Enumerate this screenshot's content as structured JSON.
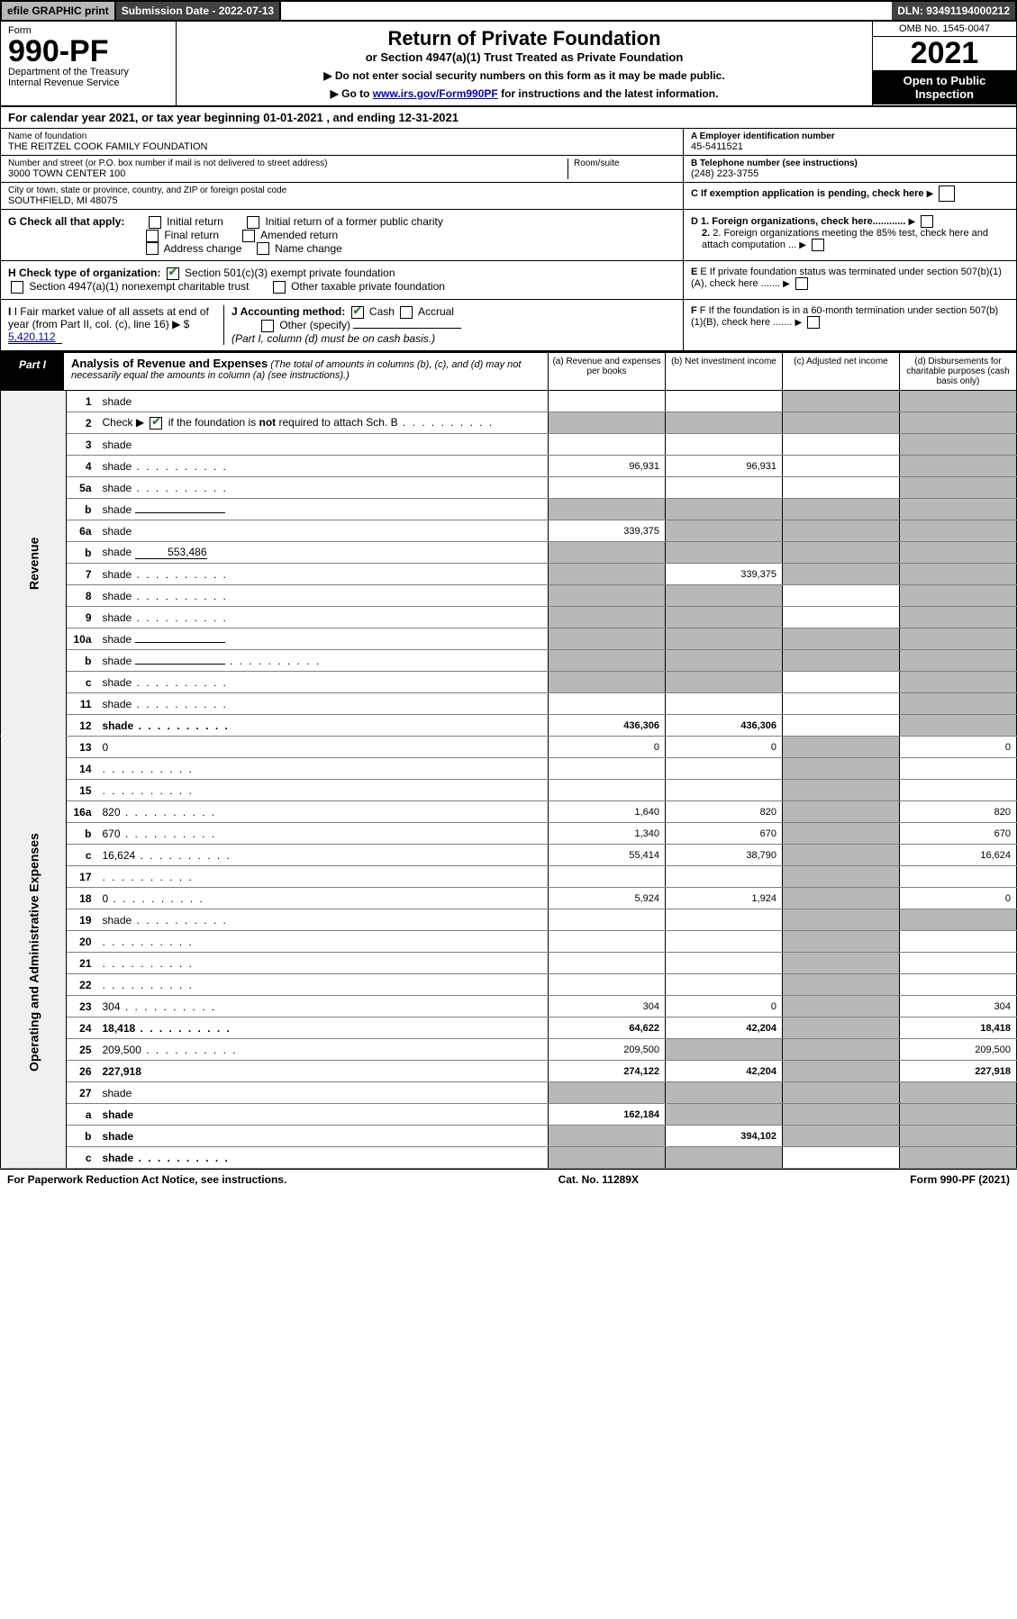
{
  "topbar": {
    "efile": "efile GRAPHIC print",
    "submission": "Submission Date - 2022-07-13",
    "dln": "DLN: 93491194000212"
  },
  "header": {
    "form_label": "Form",
    "form_number": "990-PF",
    "dept": "Department of the Treasury",
    "irs": "Internal Revenue Service",
    "title": "Return of Private Foundation",
    "subtitle": "or Section 4947(a)(1) Trust Treated as Private Foundation",
    "note1": "▶ Do not enter social security numbers on this form as it may be made public.",
    "note2_pre": "▶ Go to ",
    "note2_link": "www.irs.gov/Form990PF",
    "note2_post": " for instructions and the latest information.",
    "omb": "OMB No. 1545-0047",
    "year": "2021",
    "open": "Open to Public Inspection"
  },
  "cal_year": "For calendar year 2021, or tax year beginning 01-01-2021             , and ending 12-31-2021",
  "foundation": {
    "name_lbl": "Name of foundation",
    "name": "THE REITZEL COOK FAMILY FOUNDATION",
    "addr_lbl": "Number and street (or P.O. box number if mail is not delivered to street address)",
    "addr": "3000 TOWN CENTER 100",
    "room_lbl": "Room/suite",
    "city_lbl": "City or town, state or province, country, and ZIP or foreign postal code",
    "city": "SOUTHFIELD, MI  48075",
    "ein_lbl": "A Employer identification number",
    "ein": "45-5411521",
    "phone_lbl": "B Telephone number (see instructions)",
    "phone": "(248) 223-3755",
    "c_lbl": "C If exemption application is pending, check here",
    "d1": "D 1. Foreign organizations, check here............",
    "d2": "2. Foreign organizations meeting the 85% test, check here and attach computation ...",
    "e_lbl": "E  If private foundation status was terminated under section 507(b)(1)(A), check here .......",
    "f_lbl": "F  If the foundation is in a 60-month termination under section 507(b)(1)(B), check here ......."
  },
  "g": {
    "label": "G Check all that apply:",
    "o1": "Initial return",
    "o2": "Final return",
    "o3": "Address change",
    "o4": "Initial return of a former public charity",
    "o5": "Amended return",
    "o6": "Name change"
  },
  "h": {
    "label": "H Check type of organization:",
    "o1": "Section 501(c)(3) exempt private foundation",
    "o2": "Section 4947(a)(1) nonexempt charitable trust",
    "o3": "Other taxable private foundation"
  },
  "i": {
    "label": "I Fair market value of all assets at end of year (from Part II, col. (c), line 16)",
    "val_pre": "▶ $",
    "val": "5,420,112"
  },
  "j": {
    "label": "J Accounting method:",
    "o1": "Cash",
    "o2": "Accrual",
    "o3": "Other (specify)",
    "note": "(Part I, column (d) must be on cash basis.)"
  },
  "part1": {
    "label": "Part I",
    "title": "Analysis of Revenue and Expenses",
    "title_note": "(The total of amounts in columns (b), (c), and (d) may not necessarily equal the amounts in column (a) (see instructions).)",
    "col_a": "(a)  Revenue and expenses per books",
    "col_b": "(b)  Net investment income",
    "col_c": "(c)  Adjusted net income",
    "col_d": "(d)  Disbursements for charitable purposes (cash basis only)"
  },
  "sides": {
    "revenue": "Revenue",
    "expenses": "Operating and Administrative Expenses"
  },
  "rows": [
    {
      "n": "1",
      "d": "shade",
      "a": "",
      "b": "",
      "c": "shade"
    },
    {
      "n": "2",
      "d": "shade",
      "a": "shade",
      "b": "shade",
      "c": "shade",
      "dots": true
    },
    {
      "n": "3",
      "d": "shade",
      "a": "",
      "b": "",
      "c": ""
    },
    {
      "n": "4",
      "d": "shade",
      "a": "96,931",
      "b": "96,931",
      "c": "",
      "dots": true
    },
    {
      "n": "5a",
      "d": "shade",
      "a": "",
      "b": "",
      "c": "",
      "dots": true
    },
    {
      "n": "b",
      "d": "shade",
      "a": "shade",
      "b": "shade",
      "c": "shade",
      "inline": true
    },
    {
      "n": "6a",
      "d": "shade",
      "a": "339,375",
      "b": "shade",
      "c": "shade"
    },
    {
      "n": "b",
      "d": "shade",
      "a": "shade",
      "b": "shade",
      "c": "shade",
      "inline_val": "553,486"
    },
    {
      "n": "7",
      "d": "shade",
      "a": "shade",
      "b": "339,375",
      "c": "shade",
      "dots": true
    },
    {
      "n": "8",
      "d": "shade",
      "a": "shade",
      "b": "shade",
      "c": "",
      "dots": true
    },
    {
      "n": "9",
      "d": "shade",
      "a": "shade",
      "b": "shade",
      "c": "",
      "dots": true
    },
    {
      "n": "10a",
      "d": "shade",
      "a": "shade",
      "b": "shade",
      "c": "shade",
      "inline": true
    },
    {
      "n": "b",
      "d": "shade",
      "a": "shade",
      "b": "shade",
      "c": "shade",
      "inline": true,
      "dots": true
    },
    {
      "n": "c",
      "d": "shade",
      "a": "shade",
      "b": "shade",
      "c": "",
      "dots": true
    },
    {
      "n": "11",
      "d": "shade",
      "a": "",
      "b": "",
      "c": "",
      "dots": true
    },
    {
      "n": "12",
      "d": "shade",
      "a": "436,306",
      "b": "436,306",
      "c": "",
      "bold": true,
      "dots": true
    },
    {
      "n": "13",
      "d": "0",
      "a": "0",
      "b": "0",
      "c": "shade"
    },
    {
      "n": "14",
      "d": "",
      "a": "",
      "b": "",
      "c": "shade",
      "dots": true
    },
    {
      "n": "15",
      "d": "",
      "a": "",
      "b": "",
      "c": "shade",
      "dots": true
    },
    {
      "n": "16a",
      "d": "820",
      "a": "1,640",
      "b": "820",
      "c": "shade",
      "dots": true
    },
    {
      "n": "b",
      "d": "670",
      "a": "1,340",
      "b": "670",
      "c": "shade",
      "dots": true
    },
    {
      "n": "c",
      "d": "16,624",
      "a": "55,414",
      "b": "38,790",
      "c": "shade",
      "dots": true
    },
    {
      "n": "17",
      "d": "",
      "a": "",
      "b": "",
      "c": "shade",
      "dots": true
    },
    {
      "n": "18",
      "d": "0",
      "a": "5,924",
      "b": "1,924",
      "c": "shade",
      "dots": true
    },
    {
      "n": "19",
      "d": "shade",
      "a": "",
      "b": "",
      "c": "shade",
      "dots": true
    },
    {
      "n": "20",
      "d": "",
      "a": "",
      "b": "",
      "c": "shade",
      "dots": true
    },
    {
      "n": "21",
      "d": "",
      "a": "",
      "b": "",
      "c": "shade",
      "dots": true
    },
    {
      "n": "22",
      "d": "",
      "a": "",
      "b": "",
      "c": "shade",
      "dots": true
    },
    {
      "n": "23",
      "d": "304",
      "a": "304",
      "b": "0",
      "c": "shade",
      "dots": true
    },
    {
      "n": "24",
      "d": "18,418",
      "a": "64,622",
      "b": "42,204",
      "c": "shade",
      "bold": true,
      "dots": true
    },
    {
      "n": "25",
      "d": "209,500",
      "a": "209,500",
      "b": "shade",
      "c": "shade",
      "dots": true
    },
    {
      "n": "26",
      "d": "227,918",
      "a": "274,122",
      "b": "42,204",
      "c": "shade",
      "bold": true
    },
    {
      "n": "27",
      "d": "shade",
      "a": "shade",
      "b": "shade",
      "c": "shade"
    },
    {
      "n": "a",
      "d": "shade",
      "a": "162,184",
      "b": "shade",
      "c": "shade",
      "bold": true
    },
    {
      "n": "b",
      "d": "shade",
      "a": "shade",
      "b": "394,102",
      "c": "shade",
      "bold": true
    },
    {
      "n": "c",
      "d": "shade",
      "a": "shade",
      "b": "shade",
      "c": "",
      "bold": true,
      "dots": true
    }
  ],
  "footer": {
    "left": "For Paperwork Reduction Act Notice, see instructions.",
    "center": "Cat. No. 11289X",
    "right": "Form 990-PF (2021)"
  },
  "colors": {
    "shade": "#b8b8b8",
    "dark": "#424242",
    "black": "#000000",
    "link": "#0000cc",
    "check": "#2e7d32"
  }
}
